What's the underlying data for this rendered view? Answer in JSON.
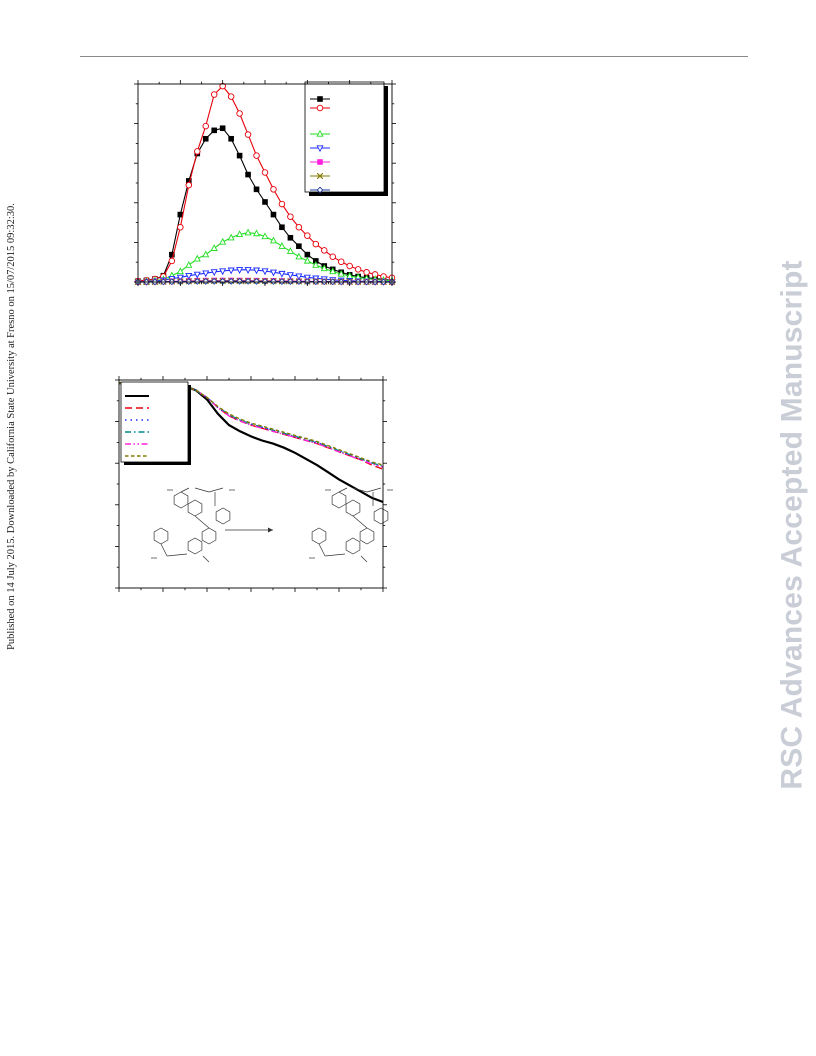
{
  "page": {
    "side_note": "Published on 14 July 2015. Downloaded by California State University at Fresno on 15/07/2015 09:32:30.",
    "watermark": "RSC Advances Accepted Manuscript"
  },
  "colors": {
    "black": "#000000",
    "red": "#e8000b",
    "green": "#22dd22",
    "blue": "#1a2bff",
    "magenta": "#ff22dd",
    "olive": "#807a00",
    "navy": "#1a3a9a",
    "teal": "#008888"
  },
  "chart_data": [
    {
      "type": "line",
      "x": [
        0,
        1,
        2,
        3,
        4,
        5,
        6,
        7,
        8,
        9,
        10,
        11,
        12,
        13,
        14,
        15,
        16,
        17,
        18,
        19,
        20,
        21,
        22,
        23,
        24,
        25,
        26,
        27,
        28,
        29,
        30
      ],
      "ylim": [
        0,
        47
      ],
      "grid": false,
      "legend_position": "top-right",
      "series": [
        {
          "marker": "square-filled",
          "color": "#000000",
          "values": [
            0.2,
            0.4,
            0.7,
            1.5,
            6.5,
            16,
            24,
            30.5,
            34,
            36,
            36.5,
            34,
            30,
            25.5,
            22,
            19,
            16,
            13,
            10.5,
            8.5,
            6.5,
            5,
            3.8,
            3,
            2.3,
            1.7,
            1.3,
            1,
            0.8,
            0.6,
            0.4
          ]
        },
        {
          "marker": "circle-open",
          "color": "#e8000b",
          "values": [
            0.2,
            0.4,
            0.7,
            1.3,
            5,
            13,
            23,
            31,
            37,
            44.5,
            46.5,
            44,
            40,
            35,
            30,
            26,
            22,
            18.5,
            15.5,
            13,
            11,
            9,
            7.5,
            6,
            4.8,
            3.8,
            3,
            2.3,
            1.8,
            1.3,
            1
          ]
        },
        {
          "marker": "triangle-up-open",
          "color": "#22dd22",
          "values": [
            0,
            0.1,
            0.3,
            0.6,
            1.5,
            2.5,
            4,
            5.5,
            6.5,
            8,
            9.5,
            10.5,
            11.3,
            11.7,
            11.5,
            10.8,
            9.8,
            8.5,
            7.3,
            6,
            5,
            4,
            3.2,
            2.5,
            1.9,
            1.4,
            1.1,
            0.8,
            0.6,
            0.4,
            0.3
          ]
        },
        {
          "marker": "triangle-down-open",
          "color": "#1a2bff",
          "values": [
            0,
            0.1,
            0.2,
            0.4,
            0.8,
            1.1,
            1.5,
            1.8,
            2.1,
            2.4,
            2.6,
            2.8,
            2.9,
            2.9,
            2.8,
            2.6,
            2.3,
            2,
            1.7,
            1.4,
            1.1,
            0.9,
            0.7,
            0.5,
            0.4,
            0.3,
            0.2,
            0.15,
            0.1,
            0.1,
            0.05
          ]
        },
        {
          "marker": "square-filled",
          "color": "#ff22dd",
          "values": [
            0,
            0,
            0.05,
            0.1,
            0.15,
            0.2,
            0.25,
            0.3,
            0.32,
            0.35,
            0.36,
            0.36,
            0.35,
            0.34,
            0.32,
            0.3,
            0.28,
            0.25,
            0.22,
            0.19,
            0.16,
            0.13,
            0.1,
            0.08,
            0.06,
            0.05,
            0.04,
            0.03,
            0.02,
            0.01,
            0.01
          ]
        },
        {
          "marker": "x",
          "color": "#807a00",
          "values": [
            0,
            0,
            0.03,
            0.06,
            0.1,
            0.13,
            0.16,
            0.2,
            0.22,
            0.24,
            0.25,
            0.25,
            0.25,
            0.24,
            0.23,
            0.21,
            0.19,
            0.17,
            0.15,
            0.13,
            0.11,
            0.09,
            0.07,
            0.06,
            0.05,
            0.04,
            0.03,
            0.02,
            0.01,
            0.01,
            0.01
          ]
        },
        {
          "marker": "diamond-open",
          "color": "#1a3a9a",
          "values": [
            0,
            0,
            0.02,
            0.04,
            0.06,
            0.08,
            0.1,
            0.12,
            0.14,
            0.15,
            0.16,
            0.16,
            0.16,
            0.15,
            0.14,
            0.13,
            0.12,
            0.11,
            0.1,
            0.09,
            0.08,
            0.07,
            0.06,
            0.05,
            0.04,
            0.03,
            0.02,
            0.01,
            0.01,
            0.01,
            0.01
          ]
        }
      ]
    },
    {
      "type": "line",
      "x": [
        0,
        1,
        2,
        3,
        4,
        5,
        6,
        7,
        8,
        9,
        10,
        11,
        12,
        13,
        14,
        15,
        16,
        17,
        18,
        19,
        20,
        21,
        22,
        23,
        24
      ],
      "ylim": [
        0,
        100
      ],
      "grid": false,
      "legend_position": "top-left",
      "series": [
        {
          "style": "solid",
          "color": "#000000",
          "values": [
            100,
            100,
            100,
            100,
            100,
            99.5,
            98.5,
            96.5,
            92,
            85,
            79.5,
            76.5,
            74,
            72,
            70.5,
            68.5,
            66,
            63,
            60,
            56.5,
            53,
            50,
            47,
            44,
            42
          ]
        },
        {
          "style": "dashed",
          "color": "#e8000b",
          "values": [
            100,
            100,
            100,
            100,
            100,
            99.5,
            98.5,
            96.5,
            93,
            88,
            84,
            81.5,
            79.5,
            78,
            76.5,
            75,
            73.5,
            72,
            70.5,
            68.5,
            66.5,
            64.5,
            62.5,
            60,
            58
          ]
        },
        {
          "style": "dotted",
          "color": "#1a2bff",
          "values": [
            100,
            100,
            100,
            100,
            100,
            99.5,
            98.5,
            96.5,
            93,
            88,
            84.5,
            82,
            80,
            78.5,
            77,
            75.5,
            74,
            72.5,
            71,
            69,
            67,
            65,
            63,
            61,
            59
          ]
        },
        {
          "style": "dash-dot",
          "color": "#008888",
          "values": [
            100,
            100,
            100,
            100,
            100,
            99.5,
            98.5,
            96.5,
            93,
            88.5,
            84.5,
            82,
            80,
            78.5,
            77,
            75.5,
            74,
            72.5,
            71,
            69,
            67,
            65,
            63,
            61,
            59.5
          ]
        },
        {
          "style": "dash-dot-dot",
          "color": "#ff22dd",
          "values": [
            100,
            100,
            100,
            100,
            100,
            99.5,
            98.5,
            96.5,
            93,
            88,
            84,
            81.5,
            79.5,
            78,
            76.5,
            75,
            73.5,
            72,
            70.5,
            68.5,
            66.5,
            64.5,
            62.5,
            60.5,
            59
          ]
        },
        {
          "style": "short-dash",
          "color": "#807a00",
          "values": [
            100,
            100,
            100,
            100,
            100,
            99.5,
            98.5,
            96.5,
            93,
            88.5,
            85,
            82.5,
            80.5,
            79,
            77.5,
            76,
            74.5,
            73,
            71.5,
            69.5,
            67.5,
            65.5,
            63.5,
            61.5,
            60
          ]
        }
      ]
    }
  ]
}
